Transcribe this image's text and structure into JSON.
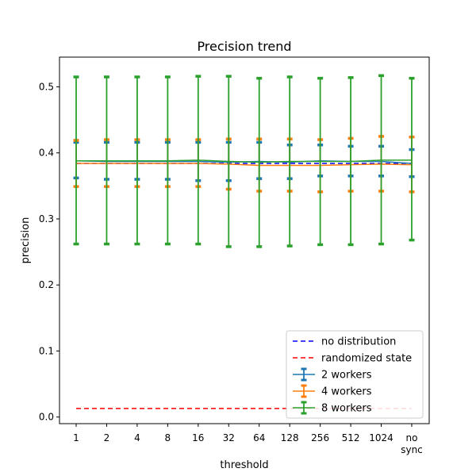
{
  "chart_data": {
    "type": "line",
    "title": "Precision trend",
    "xlabel": "threshold",
    "ylabel": "precision",
    "categories": [
      "1",
      "2",
      "4",
      "8",
      "16",
      "32",
      "64",
      "128",
      "256",
      "512",
      "1024",
      "no\nsync"
    ],
    "ylim": [
      -0.01,
      0.545
    ],
    "yticks": [
      0.0,
      0.1,
      0.2,
      0.3,
      0.4,
      0.5
    ],
    "ytick_labels": [
      "0.0",
      "0.1",
      "0.2",
      "0.3",
      "0.4",
      "0.5"
    ],
    "grid": false,
    "legend_position": "lower-right",
    "reference_lines": [
      {
        "name": "no distribution",
        "value": 0.384,
        "color": "#0000ff",
        "style": "dashed"
      },
      {
        "name": "randomized state",
        "value": 0.013,
        "color": "#ff0000",
        "style": "dashed"
      }
    ],
    "series": [
      {
        "name": "2 workers",
        "color": "#1f77b4",
        "values": [
          0.388,
          0.387,
          0.387,
          0.387,
          0.387,
          0.386,
          0.387,
          0.386,
          0.388,
          0.387,
          0.387,
          0.384
        ],
        "err_low": [
          0.362,
          0.36,
          0.36,
          0.36,
          0.358,
          0.358,
          0.361,
          0.361,
          0.365,
          0.365,
          0.365,
          0.364
        ],
        "err_high": [
          0.416,
          0.416,
          0.416,
          0.416,
          0.416,
          0.416,
          0.416,
          0.412,
          0.412,
          0.41,
          0.41,
          0.405
        ]
      },
      {
        "name": "4 workers",
        "color": "#ff7f0e",
        "values": [
          0.384,
          0.384,
          0.384,
          0.384,
          0.384,
          0.383,
          0.381,
          0.381,
          0.381,
          0.382,
          0.383,
          0.382
        ],
        "err_low": [
          0.349,
          0.349,
          0.349,
          0.349,
          0.349,
          0.345,
          0.342,
          0.342,
          0.341,
          0.342,
          0.342,
          0.341
        ],
        "err_high": [
          0.419,
          0.42,
          0.42,
          0.42,
          0.42,
          0.421,
          0.421,
          0.421,
          0.42,
          0.422,
          0.425,
          0.424
        ]
      },
      {
        "name": "8 workers",
        "color": "#2ca02c",
        "values": [
          0.388,
          0.388,
          0.388,
          0.388,
          0.389,
          0.387,
          0.386,
          0.387,
          0.387,
          0.387,
          0.389,
          0.389
        ],
        "err_low": [
          0.262,
          0.262,
          0.262,
          0.262,
          0.262,
          0.258,
          0.258,
          0.259,
          0.261,
          0.261,
          0.262,
          0.268
        ],
        "err_high": [
          0.515,
          0.515,
          0.515,
          0.515,
          0.516,
          0.516,
          0.513,
          0.515,
          0.513,
          0.514,
          0.517,
          0.513
        ]
      }
    ]
  }
}
